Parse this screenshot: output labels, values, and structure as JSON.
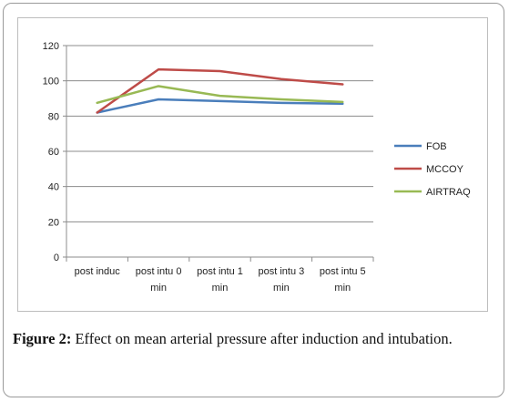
{
  "chart_data": {
    "type": "line",
    "categories": [
      [
        "post induc"
      ],
      [
        "post intu 0",
        "min"
      ],
      [
        "post intu 1",
        "min"
      ],
      [
        "post intu 3",
        "min"
      ],
      [
        "post intu 5",
        "min"
      ]
    ],
    "series": [
      {
        "name": "FOB",
        "values": [
          82,
          89.5,
          88.5,
          87.5,
          87
        ],
        "color": "#4a7ebb"
      },
      {
        "name": "MCCOY",
        "values": [
          82,
          106.5,
          105.5,
          101,
          98
        ],
        "color": "#be4b48"
      },
      {
        "name": "AIRTRAQ",
        "values": [
          87.5,
          97,
          91.5,
          89.5,
          88
        ],
        "color": "#98b954"
      }
    ],
    "yticks": [
      0,
      20,
      40,
      60,
      80,
      100,
      120
    ],
    "ylim": [
      0,
      120
    ],
    "grid": true,
    "legend": "right"
  },
  "caption": {
    "label": "Figure 2:",
    "text": " Effect on mean arterial pressure after induction and intubation."
  }
}
